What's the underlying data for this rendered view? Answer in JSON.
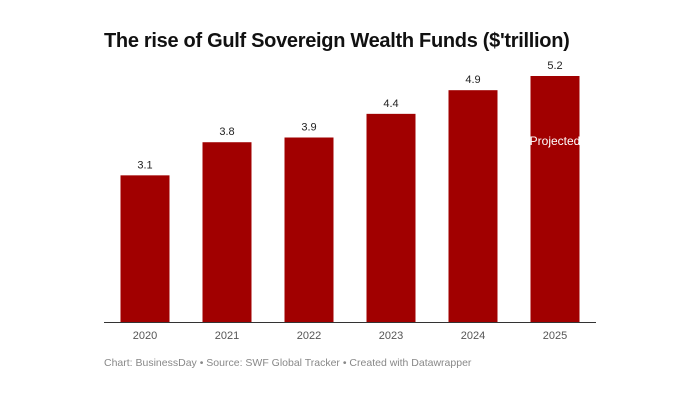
{
  "chart_data": {
    "type": "bar",
    "title": "The rise of Gulf Sovereign Wealth Funds ($'trillion)",
    "categories": [
      "2020",
      "2021",
      "2022",
      "2023",
      "2024",
      "2025"
    ],
    "values": [
      3.1,
      3.8,
      3.9,
      4.4,
      4.9,
      5.2
    ],
    "data_labels": [
      "3.1",
      "3.8",
      "3.9",
      "4.4",
      "4.9",
      "5.2"
    ],
    "annotations": [
      {
        "category": "2025",
        "text": "Projected"
      }
    ],
    "xlabel": "",
    "ylabel": "",
    "ylim": [
      0,
      5.2
    ],
    "grid": false,
    "bar_color": "#a10000",
    "footer": "Chart: BusinessDay • Source: SWF Global Tracker • Created with Datawrapper"
  }
}
